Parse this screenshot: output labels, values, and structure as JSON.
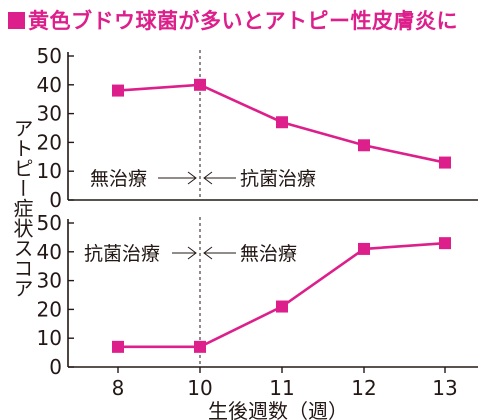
{
  "title": "黄色ブドウ球菌が多いとアトピー性皮膚炎に",
  "colors": {
    "accent": "#dd1f8b",
    "ink": "#231815"
  },
  "chart_data": [
    {
      "type": "line",
      "x": [
        8,
        10,
        11,
        12,
        13
      ],
      "series": [
        {
          "values": [
            38,
            40,
            27,
            19,
            13
          ]
        }
      ],
      "yticks": [
        0,
        10,
        20,
        30,
        40,
        50
      ],
      "ylim": [
        0,
        50
      ],
      "annotations": {
        "left": "無治療",
        "right": "抗菌治療"
      }
    },
    {
      "type": "line",
      "x": [
        8,
        10,
        11,
        12,
        13
      ],
      "series": [
        {
          "values": [
            7,
            7,
            21,
            41,
            43
          ]
        }
      ],
      "yticks": [
        0,
        10,
        20,
        30,
        40,
        50
      ],
      "ylim": [
        0,
        50
      ],
      "annotations": {
        "left": "抗菌治療",
        "right": "無治療"
      }
    }
  ],
  "xticks": [
    "8",
    "10",
    "11",
    "12",
    "13"
  ],
  "xlabel": "生後週数（週）",
  "ylabel": "アトピー症状スコア"
}
